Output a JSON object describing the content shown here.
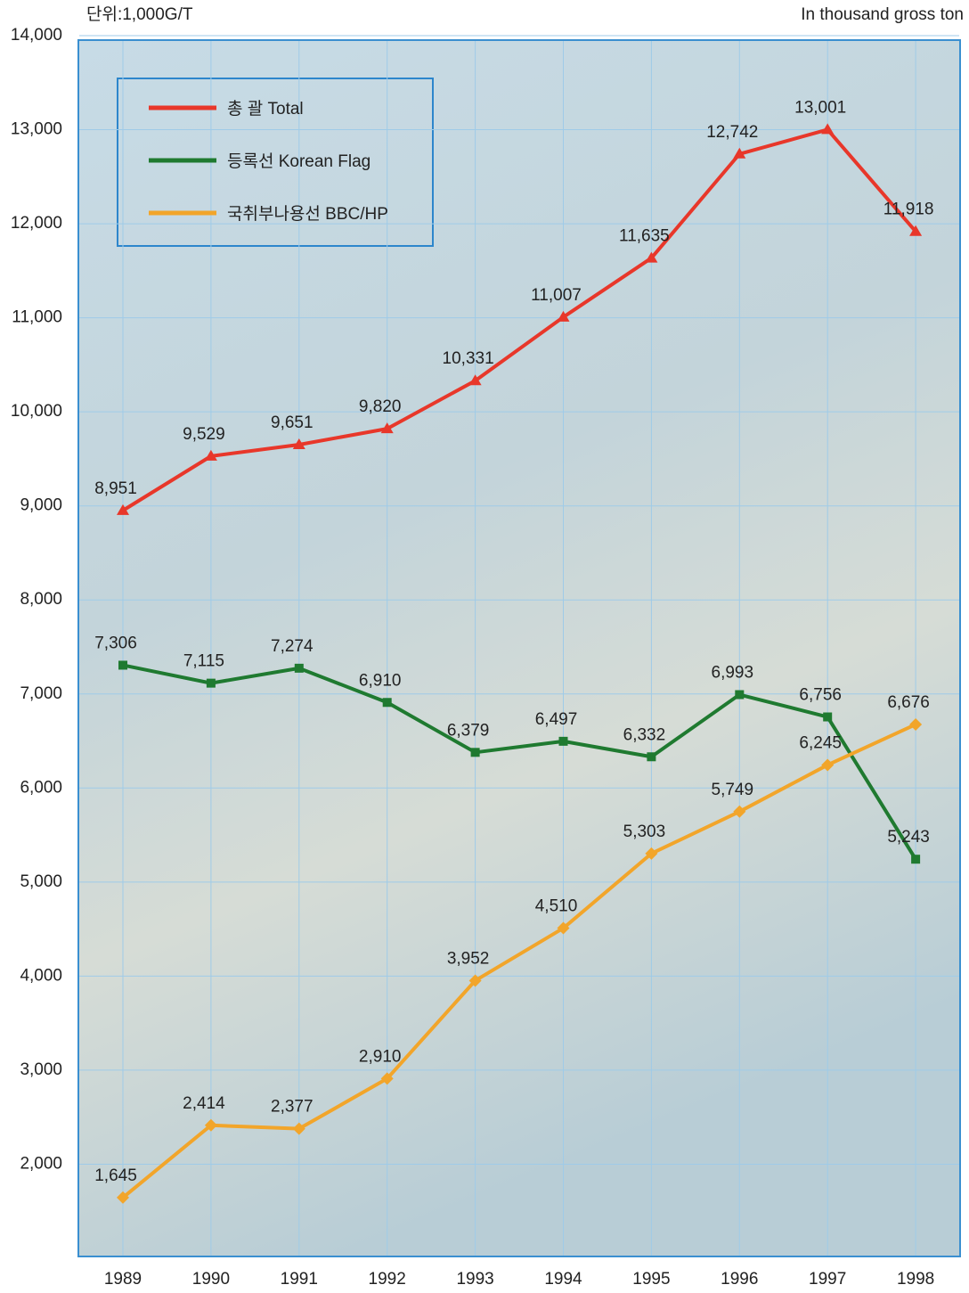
{
  "chart_data": {
    "type": "line",
    "unit_label": "단위:1,000G/T",
    "unit_label_en": "In thousand gross ton",
    "categories": [
      "1989",
      "1990",
      "1991",
      "1992",
      "1993",
      "1994",
      "1995",
      "1996",
      "1997",
      "1998"
    ],
    "series": [
      {
        "name": "총 괄 Total",
        "color": "#e8372a",
        "marker": "triangle",
        "values": [
          8951,
          9529,
          9651,
          9820,
          10331,
          11007,
          11635,
          12742,
          13001,
          11918
        ],
        "value_labels": [
          "8,951",
          "9,529",
          "9,651",
          "9,820",
          "10,331",
          "11,007",
          "11,635",
          "12,742",
          "13,001",
          "11,918"
        ]
      },
      {
        "name": "등록선 Korean Flag",
        "color": "#1f7a30",
        "marker": "square",
        "values": [
          7306,
          7115,
          7274,
          6910,
          6379,
          6497,
          6332,
          6993,
          6756,
          5243
        ],
        "value_labels": [
          "7,306",
          "7,115",
          "7,274",
          "6,910",
          "6,379",
          "6,497",
          "6,332",
          "6,993",
          "6,756",
          "5,243"
        ]
      },
      {
        "name": "국취부나용선 BBC/HP",
        "color": "#f2a52a",
        "marker": "diamond",
        "values": [
          1645,
          2414,
          2377,
          2910,
          3952,
          4510,
          5303,
          5749,
          6245,
          6676
        ],
        "value_labels": [
          "1,645",
          "2,414",
          "2,377",
          "2,910",
          "3,952",
          "4,510",
          "5,303",
          "5,749",
          "6,245",
          "6,676"
        ]
      }
    ],
    "ylim": [
      1000,
      14000
    ],
    "yticks": [
      {
        "value": 2000,
        "label": "2,000"
      },
      {
        "value": 3000,
        "label": "3,000"
      },
      {
        "value": 4000,
        "label": "4,000"
      },
      {
        "value": 5000,
        "label": "5,000"
      },
      {
        "value": 6000,
        "label": "6,000"
      },
      {
        "value": 7000,
        "label": "7,000"
      },
      {
        "value": 8000,
        "label": "8,000"
      },
      {
        "value": 9000,
        "label": "9,000"
      },
      {
        "value": 10000,
        "label": "10,000"
      },
      {
        "value": 11000,
        "label": "11,000"
      },
      {
        "value": 12000,
        "label": "12,000"
      },
      {
        "value": 13000,
        "label": "13,000"
      },
      {
        "value": 14000,
        "label": "14,000"
      }
    ],
    "grid": true
  }
}
